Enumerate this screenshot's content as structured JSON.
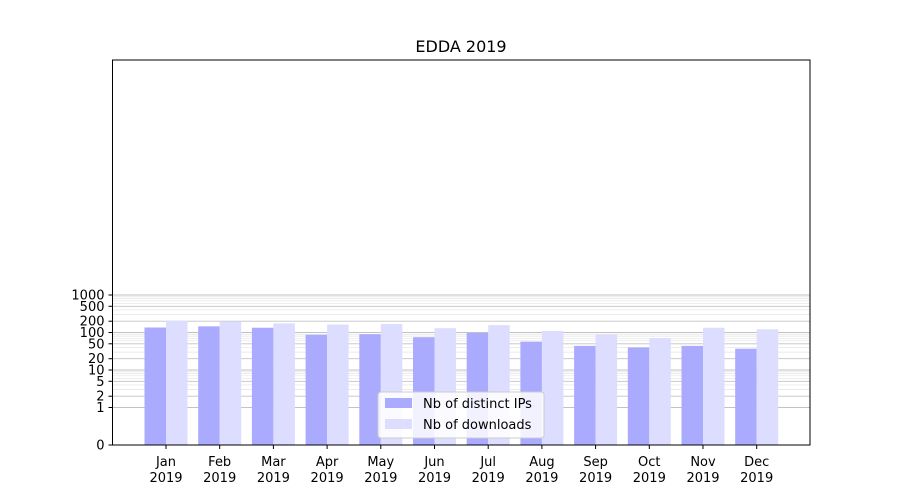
{
  "chart_data": {
    "type": "bar",
    "title": "EDDA 2019",
    "xlabel": "",
    "ylabel": "",
    "yscale": "symlog",
    "ylim": [
      0,
      1300
    ],
    "grid": true,
    "legend_placement": "lower-center",
    "categories": [
      [
        "Jan",
        "2019"
      ],
      [
        "Feb",
        "2019"
      ],
      [
        "Mar",
        "2019"
      ],
      [
        "Apr",
        "2019"
      ],
      [
        "May",
        "2019"
      ],
      [
        "Jun",
        "2019"
      ],
      [
        "Jul",
        "2019"
      ],
      [
        "Aug",
        "2019"
      ],
      [
        "Sep",
        "2019"
      ],
      [
        "Oct",
        "2019"
      ],
      [
        "Nov",
        "2019"
      ],
      [
        "Dec",
        "2019"
      ]
    ],
    "y_ticks": [
      0,
      1,
      2,
      5,
      10,
      20,
      50,
      100,
      200,
      500,
      1000
    ],
    "series": [
      {
        "name": "Nb of distinct IPs",
        "color": "#aaaaff",
        "values": [
          136,
          146,
          134,
          87,
          90,
          75,
          97,
          57,
          44,
          40,
          44,
          37
        ]
      },
      {
        "name": "Nb of downloads",
        "color": "#ddddff",
        "values": [
          205,
          198,
          175,
          163,
          168,
          130,
          157,
          110,
          88,
          71,
          134,
          122
        ]
      }
    ]
  }
}
